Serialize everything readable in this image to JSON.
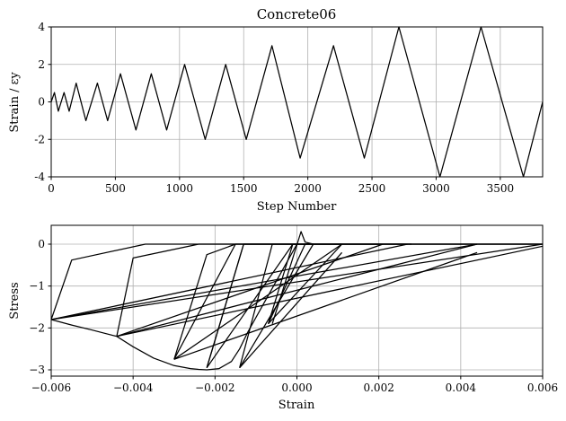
{
  "chart_data": [
    {
      "type": "line",
      "title": "Concrete06",
      "xlabel": "Step Number",
      "ylabel": "Strain / εy",
      "xlim": [
        0,
        3830
      ],
      "ylim": [
        -4,
        4
      ],
      "xticks": [
        0,
        500,
        1000,
        1500,
        2000,
        2500,
        3000,
        3500
      ],
      "yticks": [
        -4,
        -2,
        0,
        2,
        4
      ],
      "grid": true,
      "series": [
        {
          "x": [
            0,
            25,
            55,
            100,
            140,
            195,
            270,
            360,
            440,
            540,
            660,
            780,
            900,
            1040,
            1200,
            1360,
            1520,
            1720,
            1940,
            2200,
            2440,
            2710,
            3030,
            3350,
            3680,
            3830
          ],
          "y": [
            0,
            0.5,
            -0.5,
            0.5,
            -0.5,
            1,
            -1,
            1,
            -1,
            1.5,
            -1.5,
            1.5,
            -1.5,
            2,
            -2,
            2,
            -2,
            3,
            -3,
            3,
            -3,
            4,
            -4,
            4,
            -4,
            0
          ]
        }
      ]
    },
    {
      "type": "line",
      "title": "",
      "xlabel": "Strain",
      "ylabel": "Stress",
      "xlim": [
        -0.006,
        0.006
      ],
      "ylim": [
        -3.15,
        0.45
      ],
      "xticks": [
        -0.006,
        -0.004,
        -0.002,
        0.0,
        0.002,
        0.004,
        0.006
      ],
      "xtick_labels": [
        "−0.006",
        "−0.004",
        "−0.002",
        "0.000",
        "0.002",
        "0.004",
        "0.006"
      ],
      "yticks": [
        -3,
        -2,
        -1,
        0
      ],
      "ytick_labels": [
        "−3",
        "−2",
        "−1",
        "0"
      ],
      "grid": true,
      "series": [
        {
          "x": [
            0,
            -0.0004,
            -0.0008,
            -0.0012,
            -0.0014,
            -0.0016,
            -0.0019,
            -0.0022,
            -0.0024,
            -0.0026,
            -0.003,
            -0.0035,
            -0.004,
            -0.0044,
            -0.005,
            -0.0055,
            -0.006
          ],
          "y": [
            0,
            -0.7,
            -1.4,
            -2.1,
            -2.5,
            -2.8,
            -2.97,
            -3,
            -2.99,
            -2.97,
            -2.9,
            -2.72,
            -2.45,
            -2.2,
            -2.05,
            -1.93,
            -1.8
          ]
        },
        {
          "x": [
            -0.006,
            -0.0055,
            -0.0037,
            0.006
          ],
          "y": [
            -1.8,
            -0.38,
            0,
            0
          ]
        },
        {
          "x": [
            -0.006,
            0.0027
          ],
          "y": [
            -1.8,
            0
          ]
        },
        {
          "x": [
            -0.006,
            0.0044
          ],
          "y": [
            -1.8,
            0
          ]
        },
        {
          "x": [
            -0.006,
            0.006
          ],
          "y": [
            -1.8,
            0
          ]
        },
        {
          "x": [
            -0.0044,
            -0.004,
            -0.0024,
            0.006
          ],
          "y": [
            -2.2,
            -0.33,
            0,
            0
          ]
        },
        {
          "x": [
            -0.0044,
            0.0021
          ],
          "y": [
            -2.2,
            0
          ]
        },
        {
          "x": [
            -0.0044,
            0.0044
          ],
          "y": [
            -2.2,
            0
          ]
        },
        {
          "x": [
            -0.0044,
            0.006
          ],
          "y": [
            -2.2,
            -0.05
          ]
        },
        {
          "x": [
            -0.003,
            -0.0022,
            -0.0015,
            0.006
          ],
          "y": [
            -2.75,
            -0.25,
            0,
            0
          ]
        },
        {
          "x": [
            -0.003,
            -0.0015,
            0.002
          ],
          "y": [
            -2.75,
            0,
            0
          ]
        },
        {
          "x": [
            -0.003,
            0.0011
          ],
          "y": [
            -2.75,
            0
          ]
        },
        {
          "x": [
            -0.003,
            0.0044
          ],
          "y": [
            -2.75,
            -0.2
          ]
        },
        {
          "x": [
            -0.0022,
            -0.0013,
            -0.0006,
            0.006
          ],
          "y": [
            -2.95,
            0,
            0,
            0
          ]
        },
        {
          "x": [
            -0.0022,
            -0.0013,
            0.0011
          ],
          "y": [
            -2.95,
            0,
            0
          ]
        },
        {
          "x": [
            -0.0022,
            -0.0001,
            0.0028
          ],
          "y": [
            -2.95,
            0,
            0
          ]
        },
        {
          "x": [
            -0.0014,
            -0.0006,
            0.0028
          ],
          "y": [
            -2.95,
            0,
            0
          ]
        },
        {
          "x": [
            -0.0014,
            0.0004
          ],
          "y": [
            -2.95,
            0
          ]
        },
        {
          "x": [
            -0.0014,
            0.0011
          ],
          "y": [
            -2.95,
            -0.2
          ]
        },
        {
          "x": [
            -0.0007,
            -0.0001
          ],
          "y": [
            -1.9,
            0
          ]
        },
        {
          "x": [
            -0.0007,
            0.0002
          ],
          "y": [
            -1.9,
            0
          ]
        },
        {
          "x": [
            -0.0007,
            0.0011
          ],
          "y": [
            -1.9,
            0
          ]
        },
        {
          "x": [
            -0.0006,
            0.0001,
            0.0002,
            0.0004
          ],
          "y": [
            -1.9,
            0.3,
            0.05,
            0
          ]
        }
      ]
    }
  ]
}
